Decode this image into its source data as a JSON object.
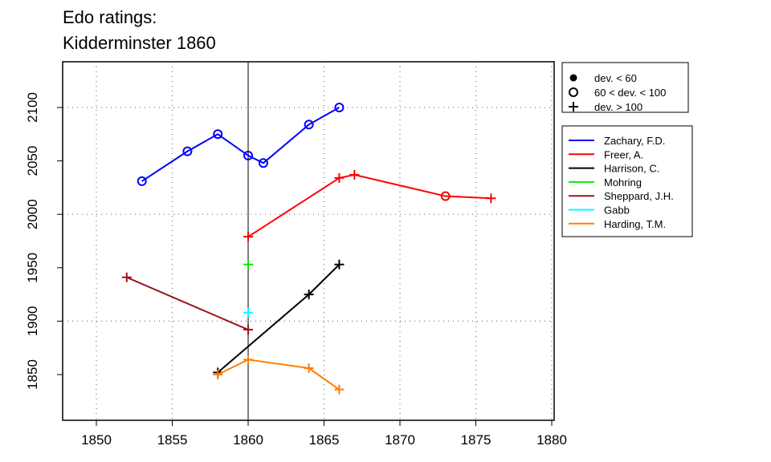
{
  "chart_data": {
    "type": "line",
    "title_lines": [
      "Edo ratings:",
      "Kidderminster 1860"
    ],
    "xlabel": "",
    "ylabel": "",
    "xlim": [
      1848,
      1880.5
    ],
    "ylim": [
      1815,
      2140
    ],
    "x_ticks": [
      1850,
      1855,
      1860,
      1865,
      1870,
      1875,
      1880
    ],
    "y_ticks": [
      1850,
      1900,
      1950,
      2000,
      2050,
      2100
    ],
    "x_grid": [
      1850,
      1855,
      1865,
      1870,
      1875,
      1880
    ],
    "y_grid": [
      1900,
      2000,
      2100
    ],
    "reference_line_x": 1860,
    "marker_legend": [
      {
        "label": "dev. < 60",
        "marker": "dot"
      },
      {
        "label": "60 < dev. < 100",
        "marker": "circle"
      },
      {
        "label": "dev. > 100",
        "marker": "plus"
      }
    ],
    "legend_placement": "right",
    "series": [
      {
        "name": "Zachary, F.D.",
        "color": "#0000ff",
        "points": [
          [
            1853,
            2031,
            "circle"
          ],
          [
            1856,
            2059,
            "circle"
          ],
          [
            1858,
            2075,
            "circle"
          ],
          [
            1860,
            2055,
            "circle"
          ],
          [
            1861,
            2048,
            "circle"
          ],
          [
            1864,
            2084,
            "circle"
          ],
          [
            1866,
            2100,
            "circle"
          ]
        ]
      },
      {
        "name": "Freer, A.",
        "color": "#ff0000",
        "points": [
          [
            1860,
            1979,
            "plus"
          ],
          [
            1866,
            2034,
            "plus"
          ],
          [
            1867,
            2037,
            "plus"
          ],
          [
            1873,
            2017,
            "circle"
          ],
          [
            1876,
            2015,
            "plus"
          ]
        ]
      },
      {
        "name": "Harrison, C.",
        "color": "#000000",
        "points": [
          [
            1858,
            1852,
            "plus"
          ],
          [
            1864,
            1925,
            "plus"
          ],
          [
            1866,
            1953,
            "plus"
          ]
        ]
      },
      {
        "name": "Mohring",
        "color": "#00ee00",
        "points": [
          [
            1860,
            1953,
            "plus"
          ]
        ]
      },
      {
        "name": "Sheppard, J.H.",
        "color": "#a0141e",
        "points": [
          [
            1852,
            1941,
            "plus"
          ],
          [
            1860,
            1892,
            "plus"
          ]
        ]
      },
      {
        "name": "Gabb",
        "color": "#00ffff",
        "points": [
          [
            1860,
            1908,
            "plus"
          ]
        ]
      },
      {
        "name": "Harding, T.M.",
        "color": "#ff7f00",
        "points": [
          [
            1858,
            1850,
            "plus"
          ],
          [
            1860,
            1864,
            "plus"
          ],
          [
            1864,
            1856,
            "plus"
          ],
          [
            1866,
            1836,
            "plus"
          ]
        ]
      }
    ]
  }
}
